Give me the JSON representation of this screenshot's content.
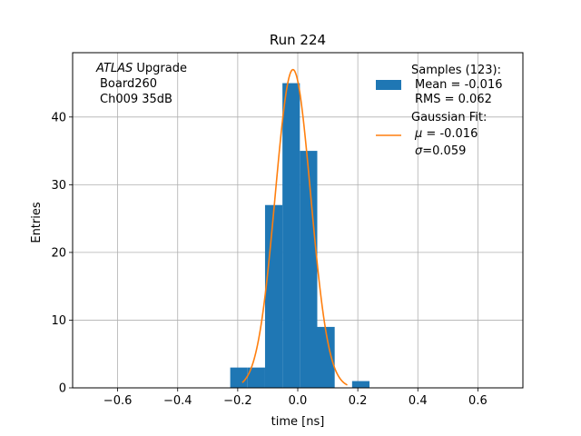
{
  "chart_data": {
    "type": "bar",
    "title": "Run 224",
    "xlabel": "time [ns]",
    "ylabel": "Entries",
    "xlim": [
      -0.75,
      0.75
    ],
    "ylim": [
      0,
      49.5
    ],
    "xticks": [
      -0.6,
      -0.4,
      -0.2,
      0.0,
      0.2,
      0.4,
      0.6
    ],
    "xtick_labels": [
      "−0.6",
      "−0.4",
      "−0.2",
      "0.0",
      "0.2",
      "0.4",
      "0.6"
    ],
    "yticks": [
      0,
      10,
      20,
      30,
      40
    ],
    "ytick_labels": [
      "0",
      "10",
      "20",
      "30",
      "40"
    ],
    "grid": true,
    "bin_width": 0.058,
    "bins": [
      {
        "left": -0.225,
        "count": 3
      },
      {
        "left": -0.167,
        "count": 3
      },
      {
        "left": -0.109,
        "count": 27
      },
      {
        "left": -0.051,
        "count": 45
      },
      {
        "left": 0.007,
        "count": 35
      },
      {
        "left": 0.065,
        "count": 9
      },
      {
        "left": 0.123,
        "count": 0
      },
      {
        "left": 0.181,
        "count": 1
      }
    ],
    "gaussian": {
      "mu": -0.016,
      "sigma": 0.059,
      "amplitude": 47.0,
      "xrange": [
        -0.185,
        0.165
      ]
    },
    "annotation": {
      "line1_italic": "ATLAS",
      "line1_rest": " Upgrade",
      "line2": "Board260",
      "line3": "Ch009 35dB"
    },
    "legend": {
      "placement": "top-right",
      "samples": {
        "line1": "Samples (123):",
        "line2": "Mean = -0.016",
        "line3": "RMS = 0.062"
      },
      "fit": {
        "line1": "Gaussian Fit:",
        "line2_sym": "μ",
        "line2_val": " = -0.016",
        "line3_sym": "σ",
        "line3_val": "=0.059"
      }
    },
    "colors": {
      "bar": "#1f77b4",
      "fit": "#ff7f0e",
      "grid": "#b0b0b0"
    }
  }
}
